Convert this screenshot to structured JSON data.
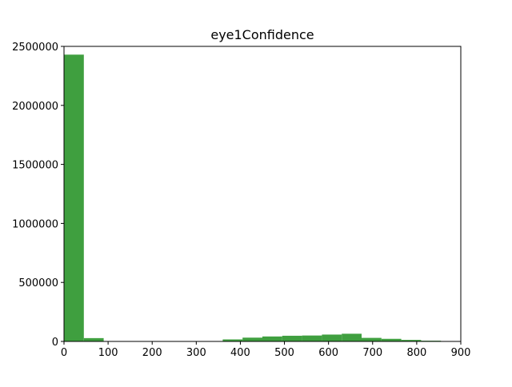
{
  "chart_data": {
    "type": "bar",
    "title": "eye1Confidence",
    "xlabel": "",
    "ylabel": "",
    "xlim": [
      0,
      900
    ],
    "ylim": [
      0,
      2500000
    ],
    "x_ticks": [
      "0",
      "100",
      "200",
      "300",
      "400",
      "500",
      "600",
      "700",
      "800",
      "900"
    ],
    "y_ticks": [
      "0",
      "500000",
      "1000000",
      "1500000",
      "2000000",
      "2500000"
    ],
    "bar_color": "#3f9f3f",
    "bins": [
      {
        "x0": 0,
        "x1": 45,
        "value": 2430000
      },
      {
        "x0": 45,
        "x1": 90,
        "value": 28000
      },
      {
        "x0": 90,
        "x1": 135,
        "value": 2000
      },
      {
        "x0": 135,
        "x1": 180,
        "value": 1000
      },
      {
        "x0": 180,
        "x1": 225,
        "value": 1000
      },
      {
        "x0": 225,
        "x1": 270,
        "value": 1000
      },
      {
        "x0": 270,
        "x1": 315,
        "value": 1000
      },
      {
        "x0": 315,
        "x1": 360,
        "value": 2000
      },
      {
        "x0": 360,
        "x1": 405,
        "value": 17000
      },
      {
        "x0": 405,
        "x1": 450,
        "value": 32000
      },
      {
        "x0": 450,
        "x1": 495,
        "value": 42000
      },
      {
        "x0": 495,
        "x1": 540,
        "value": 48000
      },
      {
        "x0": 540,
        "x1": 585,
        "value": 50000
      },
      {
        "x0": 585,
        "x1": 630,
        "value": 58000
      },
      {
        "x0": 630,
        "x1": 675,
        "value": 65000
      },
      {
        "x0": 675,
        "x1": 720,
        "value": 30000
      },
      {
        "x0": 720,
        "x1": 765,
        "value": 22000
      },
      {
        "x0": 765,
        "x1": 810,
        "value": 13000
      },
      {
        "x0": 810,
        "x1": 855,
        "value": 6000
      }
    ]
  }
}
